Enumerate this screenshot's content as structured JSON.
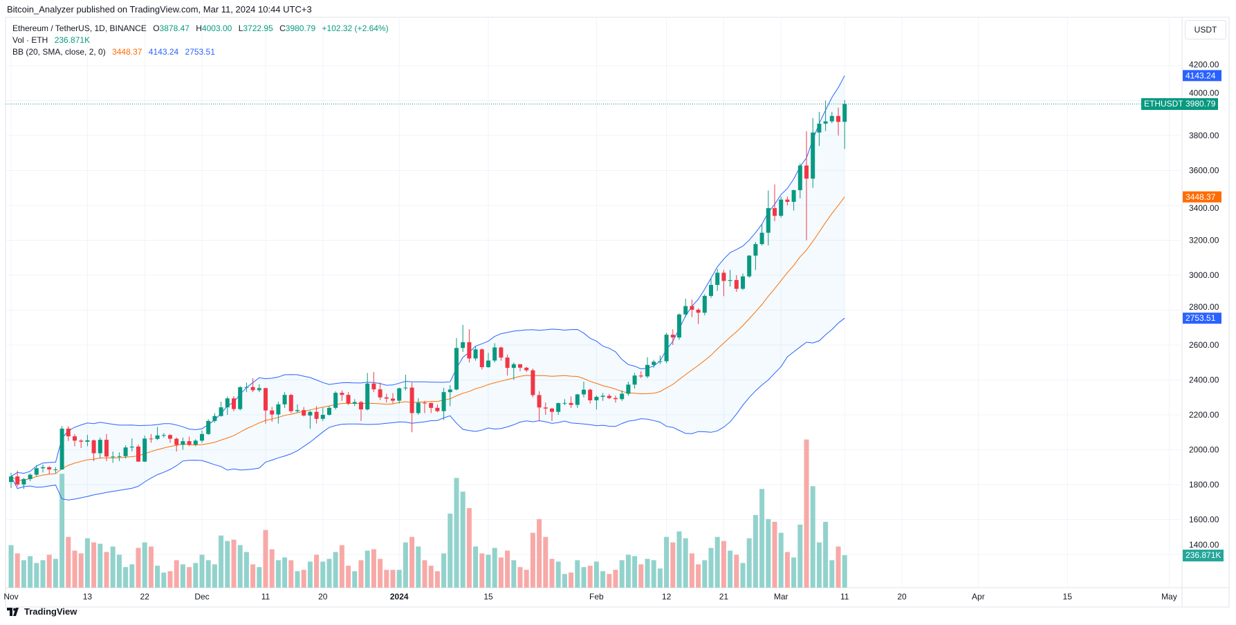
{
  "publish_line": "Bitcoin_Analyzer published on TradingView.com, Mar 11, 2024 10:44 UTC+3",
  "legend": {
    "symbol": "Ethereum / TetherUS, 1D, BINANCE",
    "o_label": "O",
    "o": "3878.47",
    "h_label": "H",
    "h": "4003.00",
    "l_label": "L",
    "l": "3722.95",
    "c_label": "C",
    "c": "3980.79",
    "change": "+102.32 (+2.64%)",
    "vol_label": "Vol · ETH",
    "vol": "236.871K",
    "bb_label": "BB (20, SMA, close, 2, 0)",
    "bb_mid": "3448.37",
    "bb_upper": "4143.24",
    "bb_lower": "2753.51"
  },
  "currency_button": "USDT",
  "symbol_tag": "ETHUSDT",
  "last_price": "3980.79",
  "volume_tag": "236.871K",
  "logo_text": "TradingView",
  "colors": {
    "up": "#089981",
    "down": "#f23645",
    "vol_up": "#92d2cc",
    "vol_down": "#f7a9a7",
    "bb_band": "#2962ff",
    "bb_mid": "#ff6d00",
    "grid": "#f0f3fa"
  },
  "chart_data": {
    "type": "candlestick",
    "first_candle_date": "2023-11-01",
    "y_ticks": [
      1400,
      1600,
      1800,
      2000,
      2200,
      2400,
      2600,
      2800,
      3000,
      3200,
      3400,
      3600,
      3800,
      4000,
      4200
    ],
    "x_labels": [
      {
        "label": "Nov",
        "date": "2023-11-01"
      },
      {
        "label": "13",
        "date": "2023-11-13"
      },
      {
        "label": "22",
        "date": "2023-11-22"
      },
      {
        "label": "Dec",
        "date": "2023-12-01"
      },
      {
        "label": "11",
        "date": "2023-12-11"
      },
      {
        "label": "20",
        "date": "2023-12-20"
      },
      {
        "label": "2024",
        "date": "2024-01-01"
      },
      {
        "label": "15",
        "date": "2024-01-15"
      },
      {
        "label": "Feb",
        "date": "2024-02-01"
      },
      {
        "label": "12",
        "date": "2024-02-12"
      },
      {
        "label": "21",
        "date": "2024-02-21"
      },
      {
        "label": "Mar",
        "date": "2024-03-01"
      },
      {
        "label": "11",
        "date": "2024-03-11"
      },
      {
        "label": "20",
        "date": "2024-03-20"
      },
      {
        "label": "Apr",
        "date": "2024-04-01"
      },
      {
        "label": "15",
        "date": "2024-04-15"
      },
      {
        "label": "May",
        "date": "2024-05-01"
      }
    ],
    "bb": {
      "period": 20,
      "mult": 2,
      "last_mid": 3448.37,
      "last_upper": 4143.24,
      "last_lower": 2753.51
    },
    "ohlc": [
      [
        1815,
        1868,
        1780,
        1847
      ],
      [
        1847,
        1880,
        1790,
        1801
      ],
      [
        1801,
        1838,
        1775,
        1832
      ],
      [
        1832,
        1865,
        1820,
        1857
      ],
      [
        1857,
        1912,
        1846,
        1894
      ],
      [
        1894,
        1915,
        1870,
        1900
      ],
      [
        1900,
        1906,
        1860,
        1887
      ],
      [
        1887,
        1900,
        1866,
        1887
      ],
      [
        1887,
        2136,
        1885,
        2121
      ],
      [
        2121,
        2135,
        2050,
        2077
      ],
      [
        2077,
        2090,
        2020,
        2052
      ],
      [
        2052,
        2060,
        2010,
        2046
      ],
      [
        2046,
        2085,
        2020,
        2054
      ],
      [
        2054,
        2058,
        1935,
        1980
      ],
      [
        1980,
        2070,
        1950,
        2057
      ],
      [
        2057,
        2090,
        1935,
        1961
      ],
      [
        1961,
        1990,
        1925,
        1961
      ],
      [
        1961,
        1985,
        1935,
        1963
      ],
      [
        1963,
        2025,
        1950,
        2013
      ],
      [
        2013,
        2065,
        1990,
        2018
      ],
      [
        2018,
        2030,
        1930,
        1932
      ],
      [
        1932,
        2080,
        1930,
        2064
      ],
      [
        2064,
        2090,
        2040,
        2062
      ],
      [
        2062,
        2130,
        2055,
        2082
      ],
      [
        2082,
        2095,
        2070,
        2084
      ],
      [
        2084,
        2090,
        2040,
        2063
      ],
      [
        2063,
        2070,
        1990,
        2028
      ],
      [
        2028,
        2070,
        2000,
        2049
      ],
      [
        2049,
        2075,
        2020,
        2030
      ],
      [
        2030,
        2060,
        2020,
        2052
      ],
      [
        2052,
        2110,
        2040,
        2090
      ],
      [
        2090,
        2175,
        2085,
        2165
      ],
      [
        2165,
        2210,
        2155,
        2193
      ],
      [
        2193,
        2275,
        2190,
        2243
      ],
      [
        2243,
        2305,
        2200,
        2294
      ],
      [
        2294,
        2308,
        2220,
        2233
      ],
      [
        2233,
        2365,
        2225,
        2358
      ],
      [
        2358,
        2385,
        2330,
        2359
      ],
      [
        2359,
        2410,
        2330,
        2341
      ],
      [
        2341,
        2375,
        2330,
        2353
      ],
      [
        2353,
        2355,
        2150,
        2225
      ],
      [
        2225,
        2245,
        2160,
        2202
      ],
      [
        2202,
        2275,
        2150,
        2260
      ],
      [
        2260,
        2330,
        2240,
        2314
      ],
      [
        2314,
        2320,
        2210,
        2221
      ],
      [
        2221,
        2260,
        2210,
        2227
      ],
      [
        2227,
        2245,
        2190,
        2196
      ],
      [
        2196,
        2225,
        2120,
        2217
      ],
      [
        2217,
        2250,
        2150,
        2177
      ],
      [
        2177,
        2240,
        2165,
        2200
      ],
      [
        2200,
        2250,
        2195,
        2240
      ],
      [
        2240,
        2335,
        2230,
        2326
      ],
      [
        2326,
        2340,
        2280,
        2314
      ],
      [
        2314,
        2330,
        2255,
        2264
      ],
      [
        2264,
        2290,
        2250,
        2273
      ],
      [
        2273,
        2280,
        2165,
        2231
      ],
      [
        2231,
        2440,
        2225,
        2379
      ],
      [
        2379,
        2445,
        2330,
        2346
      ],
      [
        2346,
        2385,
        2285,
        2300
      ],
      [
        2300,
        2320,
        2270,
        2293
      ],
      [
        2293,
        2325,
        2265,
        2281
      ],
      [
        2281,
        2355,
        2265,
        2352
      ],
      [
        2352,
        2430,
        2340,
        2356
      ],
      [
        2356,
        2385,
        2100,
        2210
      ],
      [
        2210,
        2295,
        2200,
        2269
      ],
      [
        2269,
        2280,
        2210,
        2268
      ],
      [
        2268,
        2270,
        2210,
        2240
      ],
      [
        2240,
        2260,
        2215,
        2221
      ],
      [
        2221,
        2355,
        2170,
        2330
      ],
      [
        2330,
        2370,
        2250,
        2345
      ],
      [
        2345,
        2640,
        2340,
        2583
      ],
      [
        2583,
        2715,
        2560,
        2616
      ],
      [
        2616,
        2690,
        2500,
        2523
      ],
      [
        2523,
        2590,
        2510,
        2575
      ],
      [
        2575,
        2580,
        2460,
        2473
      ],
      [
        2473,
        2555,
        2470,
        2511
      ],
      [
        2511,
        2610,
        2500,
        2586
      ],
      [
        2586,
        2590,
        2510,
        2528
      ],
      [
        2528,
        2545,
        2425,
        2469
      ],
      [
        2469,
        2500,
        2400,
        2490
      ],
      [
        2490,
        2490,
        2450,
        2470
      ],
      [
        2470,
        2475,
        2445,
        2455
      ],
      [
        2455,
        2465,
        2300,
        2313
      ],
      [
        2313,
        2335,
        2165,
        2242
      ],
      [
        2242,
        2270,
        2200,
        2236
      ],
      [
        2236,
        2240,
        2165,
        2217
      ],
      [
        2217,
        2270,
        2200,
        2267
      ],
      [
        2267,
        2290,
        2255,
        2268
      ],
      [
        2268,
        2305,
        2240,
        2257
      ],
      [
        2257,
        2320,
        2240,
        2317
      ],
      [
        2317,
        2390,
        2300,
        2344
      ],
      [
        2344,
        2350,
        2265,
        2283
      ],
      [
        2283,
        2310,
        2230,
        2303
      ],
      [
        2303,
        2325,
        2280,
        2309
      ],
      [
        2309,
        2320,
        2290,
        2296
      ],
      [
        2296,
        2310,
        2270,
        2290
      ],
      [
        2290,
        2340,
        2280,
        2321
      ],
      [
        2321,
        2390,
        2310,
        2373
      ],
      [
        2373,
        2440,
        2350,
        2425
      ],
      [
        2425,
        2450,
        2410,
        2420
      ],
      [
        2420,
        2530,
        2410,
        2486
      ],
      [
        2486,
        2515,
        2470,
        2504
      ],
      [
        2504,
        2540,
        2490,
        2507
      ],
      [
        2507,
        2670,
        2495,
        2659
      ],
      [
        2659,
        2690,
        2600,
        2643
      ],
      [
        2643,
        2780,
        2630,
        2775
      ],
      [
        2775,
        2865,
        2760,
        2823
      ],
      [
        2823,
        2860,
        2760,
        2802
      ],
      [
        2802,
        2810,
        2720,
        2785
      ],
      [
        2785,
        2890,
        2770,
        2881
      ],
      [
        2881,
        2985,
        2870,
        2944
      ],
      [
        2944,
        3035,
        2910,
        3014
      ],
      [
        3014,
        3030,
        2880,
        2967
      ],
      [
        2967,
        3030,
        2935,
        2972
      ],
      [
        2972,
        3000,
        2905,
        2922
      ],
      [
        2922,
        3010,
        2915,
        2993
      ],
      [
        2993,
        3115,
        2985,
        3112
      ],
      [
        3112,
        3190,
        3030,
        3178
      ],
      [
        3178,
        3290,
        3170,
        3243
      ],
      [
        3243,
        3485,
        3170,
        3384
      ],
      [
        3384,
        3520,
        3310,
        3340
      ],
      [
        3340,
        3450,
        3330,
        3433
      ],
      [
        3433,
        3450,
        3400,
        3420
      ],
      [
        3420,
        3490,
        3370,
        3487
      ],
      [
        3487,
        3640,
        3440,
        3628
      ],
      [
        3628,
        3825,
        3200,
        3553
      ],
      [
        3553,
        3900,
        3500,
        3817
      ],
      [
        3817,
        3935,
        3740,
        3868
      ],
      [
        3868,
        4000,
        3825,
        3881
      ],
      [
        3881,
        3935,
        3870,
        3912
      ],
      [
        3912,
        3960,
        3800,
        3878
      ],
      [
        3878.47,
        4003,
        3722.95,
        3980.79
      ]
    ],
    "volume_k": [
      310,
      250,
      200,
      230,
      180,
      200,
      240,
      210,
      830,
      370,
      270,
      250,
      360,
      330,
      320,
      260,
      300,
      240,
      150,
      170,
      290,
      330,
      300,
      160,
      110,
      120,
      200,
      170,
      150,
      180,
      240,
      200,
      170,
      380,
      340,
      350,
      310,
      260,
      170,
      150,
      420,
      280,
      200,
      220,
      200,
      120,
      130,
      190,
      240,
      190,
      210,
      260,
      310,
      160,
      120,
      200,
      270,
      280,
      210,
      130,
      130,
      130,
      330,
      370,
      300,
      200,
      160,
      120,
      250,
      540,
      800,
      700,
      580,
      300,
      250,
      240,
      290,
      220,
      270,
      200,
      150,
      130,
      400,
      500,
      370,
      210,
      190,
      100,
      110,
      200,
      150,
      160,
      190,
      120,
      100,
      130,
      200,
      240,
      230,
      170,
      210,
      200,
      140,
      370,
      330,
      410,
      360,
      250,
      170,
      200,
      290,
      370,
      340,
      270,
      240,
      180,
      360,
      530,
      720,
      500,
      480,
      400,
      260,
      220,
      460,
      1080,
      740,
      330,
      480,
      200,
      300,
      236.871
    ]
  }
}
